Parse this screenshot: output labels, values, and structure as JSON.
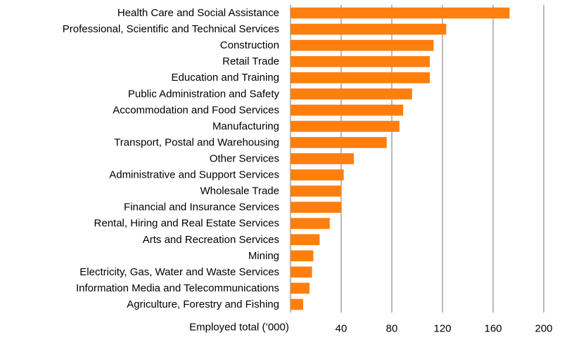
{
  "chart_data": {
    "type": "bar",
    "orientation": "horizontal",
    "title": "",
    "xlabel": "Employed total (’000)",
    "ylabel": "",
    "xlim": [
      0,
      200
    ],
    "xticks": [
      40,
      80,
      120,
      160,
      200
    ],
    "grid": true,
    "bar_color": "#ff7f0e",
    "grid_color": "#8c8c8c",
    "categories": [
      "Health Care and Social Assistance",
      "Professional, Scientific and Technical Services",
      "Construction",
      "Retail Trade",
      "Education and Training",
      "Public Administration and Safety",
      "Accommodation and Food Services",
      "Manufacturing",
      "Transport, Postal and Warehousing",
      "Other Services",
      "Administrative and Support Services",
      "Wholesale Trade",
      "Financial and Insurance Services",
      "Rental, Hiring and Real Estate Services",
      "Arts and Recreation Services",
      "Mining",
      "Electricity, Gas, Water and Waste Services",
      "Information Media and Telecommunications",
      "Agriculture, Forestry and Fishing"
    ],
    "values": [
      173,
      123,
      113,
      110,
      110,
      96,
      89,
      86,
      76,
      50,
      42,
      40,
      40,
      31,
      23,
      18,
      17,
      15,
      10
    ]
  }
}
